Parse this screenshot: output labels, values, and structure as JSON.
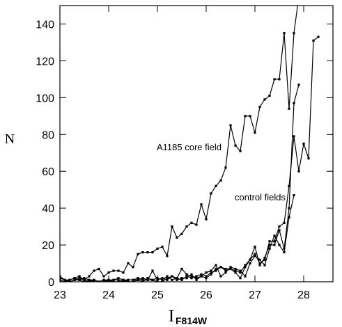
{
  "chart_data": {
    "type": "line",
    "ylabel": "N",
    "xlabel": "I",
    "xlabel_subscript": "F814W",
    "annotations": [
      "A1185 core field",
      "control fields"
    ],
    "xlim": [
      23,
      28.6
    ],
    "xticks": [
      23,
      24,
      25,
      26,
      27,
      28
    ],
    "ylim": [
      0,
      150
    ],
    "yticks": [
      0,
      20,
      40,
      60,
      80,
      100,
      120,
      140
    ],
    "color": "#000000",
    "series": [
      {
        "x": [
          23.0,
          23.1,
          23.2,
          23.3,
          23.4,
          23.5,
          23.6,
          23.7,
          23.8,
          23.9,
          24.0,
          24.1,
          24.2,
          24.3,
          24.4,
          24.5,
          24.6,
          24.7,
          24.8,
          24.9,
          25.0,
          25.1,
          25.2,
          25.3,
          25.4,
          25.5,
          25.6,
          25.7,
          25.8,
          25.9,
          26.0,
          26.1,
          26.2,
          26.3,
          26.4,
          26.5,
          26.6,
          26.7,
          26.8,
          26.9,
          27.0,
          27.1,
          27.2,
          27.3,
          27.4,
          27.5,
          27.6,
          27.7,
          27.8,
          27.9
        ],
        "values": [
          2,
          1,
          1,
          2,
          3,
          1,
          3,
          6,
          7,
          3,
          5,
          6,
          6,
          5,
          10,
          8,
          15,
          16,
          16,
          16,
          18,
          19,
          14,
          30,
          24,
          26,
          30,
          32,
          31,
          42,
          34,
          48,
          52,
          55,
          62,
          85,
          74,
          71,
          90,
          90,
          81,
          95,
          99,
          101,
          110,
          110,
          135,
          94,
          135,
          155
        ]
      },
      {
        "x": [
          23.0,
          23.1,
          23.2,
          23.3,
          23.4,
          23.5,
          23.6,
          23.7,
          23.8,
          23.9,
          24.0,
          24.1,
          24.2,
          24.3,
          24.4,
          24.5,
          24.6,
          24.7,
          24.8,
          24.9,
          25.0,
          25.1,
          25.2,
          25.3,
          25.4,
          25.5,
          25.6,
          25.7,
          25.8,
          25.9,
          26.0,
          26.1,
          26.2,
          26.3,
          26.4,
          26.5,
          26.6,
          26.7,
          26.8,
          26.9,
          27.0,
          27.1,
          27.2,
          27.3,
          27.4,
          27.5,
          27.6,
          27.7,
          27.8,
          27.9,
          28.0,
          28.1,
          28.2,
          28.3
        ],
        "values": [
          3,
          1,
          0,
          1,
          1,
          2,
          1,
          1,
          0,
          1,
          1,
          1,
          2,
          1,
          1,
          1,
          1,
          2,
          1,
          1,
          2,
          1,
          3,
          1,
          2,
          1,
          3,
          2,
          3,
          4,
          3,
          5,
          6,
          8,
          7,
          7,
          6,
          5,
          9,
          12,
          15,
          10,
          12,
          22,
          22,
          30,
          32,
          52,
          79,
          60,
          75,
          67,
          131,
          133
        ]
      },
      {
        "x": [
          23.0,
          23.1,
          23.2,
          23.3,
          23.4,
          23.5,
          23.6,
          23.7,
          23.8,
          23.9,
          24.0,
          24.1,
          24.2,
          24.3,
          24.4,
          24.5,
          24.6,
          24.7,
          24.8,
          24.9,
          25.0,
          25.1,
          25.2,
          25.3,
          25.4,
          25.5,
          25.6,
          25.7,
          25.8,
          25.9,
          26.0,
          26.1,
          26.2,
          26.3,
          26.4,
          26.5,
          26.6,
          26.7,
          26.8,
          26.9,
          27.0,
          27.1,
          27.2,
          27.3,
          27.4,
          27.5,
          27.6,
          27.7,
          27.8,
          27.9
        ],
        "values": [
          0,
          0,
          1,
          2,
          1,
          0,
          1,
          0,
          0,
          1,
          0,
          1,
          1,
          0,
          1,
          1,
          2,
          1,
          1,
          6,
          1,
          2,
          1,
          3,
          2,
          7,
          4,
          3,
          2,
          3,
          2,
          4,
          7,
          8,
          6,
          7,
          5,
          2,
          8,
          12,
          19,
          9,
          13,
          20,
          20,
          28,
          18,
          40,
          97,
          107
        ]
      },
      {
        "x": [
          23.0,
          23.1,
          23.2,
          23.3,
          23.4,
          23.5,
          23.6,
          23.7,
          23.8,
          23.9,
          24.0,
          24.1,
          24.2,
          24.3,
          24.4,
          24.5,
          24.6,
          24.7,
          24.8,
          24.9,
          25.0,
          25.1,
          25.2,
          25.3,
          25.4,
          25.5,
          25.6,
          25.7,
          25.8,
          25.9,
          26.0,
          26.1,
          26.2,
          26.3,
          26.4,
          26.5,
          26.6,
          26.7,
          26.8,
          26.9,
          27.0,
          27.1,
          27.2,
          27.3,
          27.4,
          27.5,
          27.6,
          27.7,
          27.8
        ],
        "values": [
          1,
          0,
          0,
          1,
          2,
          1,
          0,
          1,
          0,
          0,
          1,
          0,
          0,
          1,
          0,
          0,
          1,
          0,
          2,
          1,
          0,
          0,
          2,
          3,
          1,
          2,
          2,
          4,
          1,
          3,
          5,
          6,
          9,
          3,
          5,
          8,
          7,
          6,
          3,
          10,
          14,
          12,
          9,
          18,
          25,
          20,
          16,
          35,
          47
        ]
      }
    ]
  }
}
